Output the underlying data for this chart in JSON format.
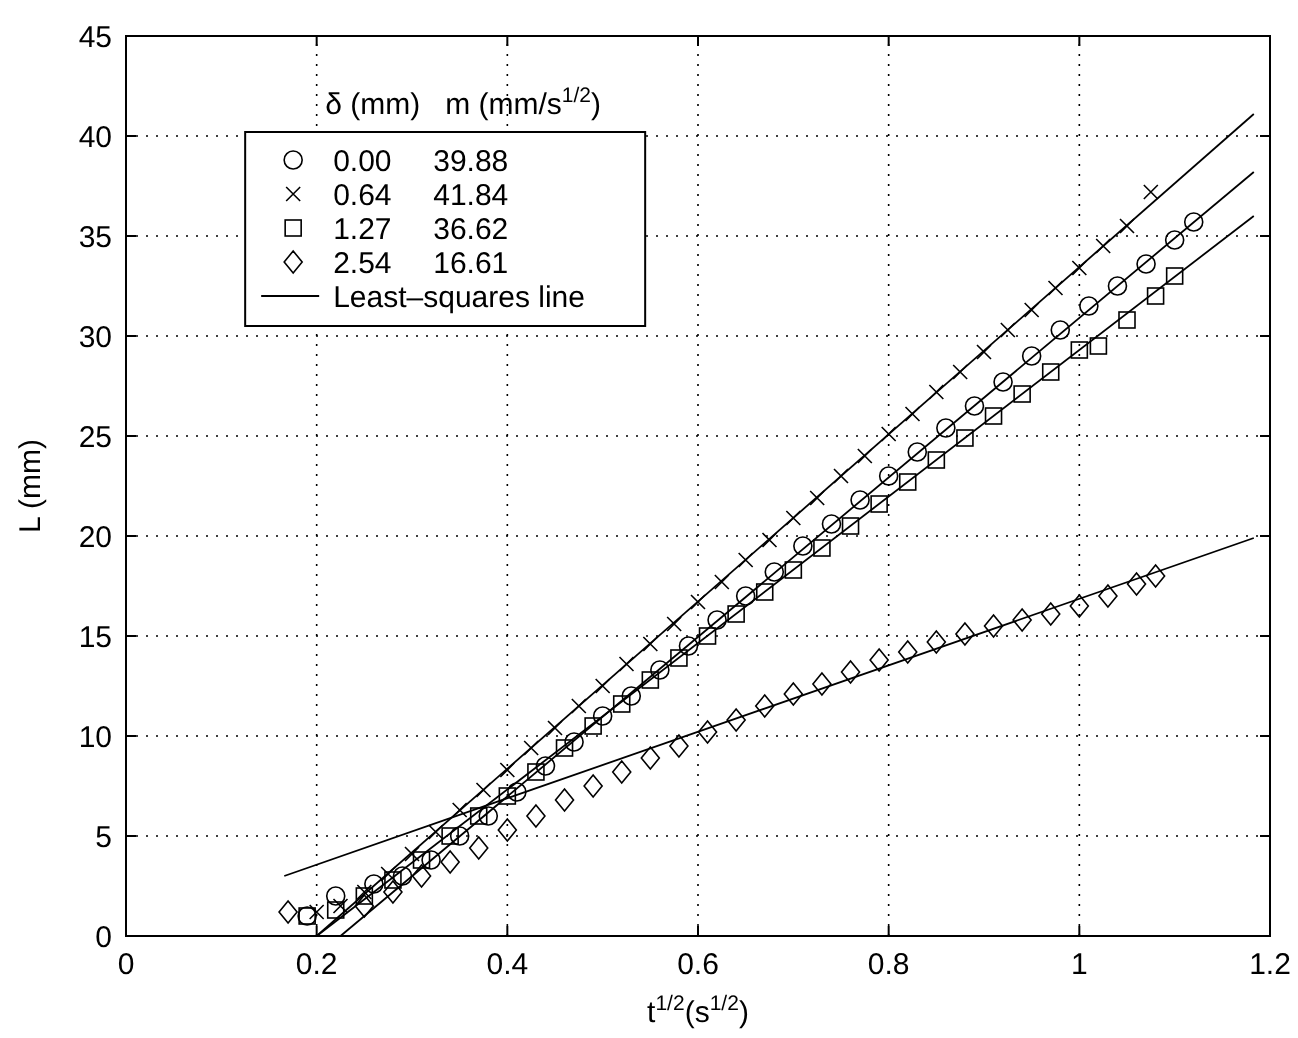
{
  "chart_data": {
    "type": "scatter",
    "xlabel": "t$^{1/2}$(s$^{1/2}$)",
    "ylabel": "L (mm)",
    "legend_title": "δ (mm)   m (mm/s$^{1/2}$)",
    "xlim": [
      0,
      1.2
    ],
    "xticks": [
      0,
      0.2,
      0.4,
      0.6,
      0.8,
      1,
      1.2
    ],
    "ylim": [
      0,
      45
    ],
    "yticks": [
      0,
      5,
      10,
      15,
      20,
      25,
      30,
      35,
      40,
      45
    ],
    "grid": true,
    "legend": "top left",
    "series": [
      {
        "name": "0.00     39.88",
        "color": "#000000",
        "marker": "circle",
        "x": [
          0.19,
          0.22,
          0.26,
          0.29,
          0.32,
          0.35,
          0.38,
          0.41,
          0.44,
          0.47,
          0.5,
          0.53,
          0.56,
          0.59,
          0.62,
          0.65,
          0.68,
          0.71,
          0.74,
          0.77,
          0.8,
          0.83,
          0.86,
          0.89,
          0.92,
          0.95,
          0.98,
          1.01,
          1.04,
          1.07,
          1.1,
          1.12
        ],
        "values": [
          1.0,
          2.0,
          2.6,
          3.0,
          3.8,
          5.0,
          6.0,
          7.2,
          8.5,
          9.7,
          11.0,
          12.0,
          13.3,
          14.5,
          15.8,
          17.0,
          18.2,
          19.5,
          20.6,
          21.8,
          23.0,
          24.2,
          25.4,
          26.5,
          27.7,
          29.0,
          30.3,
          31.5,
          32.5,
          33.6,
          34.8,
          35.7
        ]
      },
      {
        "name": "0.64     41.84",
        "color": "#000000",
        "marker": "cross",
        "x": [
          0.2,
          0.225,
          0.25,
          0.275,
          0.3,
          0.325,
          0.35,
          0.375,
          0.4,
          0.425,
          0.45,
          0.475,
          0.5,
          0.525,
          0.55,
          0.575,
          0.6,
          0.625,
          0.65,
          0.675,
          0.7,
          0.725,
          0.75,
          0.775,
          0.8,
          0.825,
          0.85,
          0.875,
          0.9,
          0.925,
          0.95,
          0.975,
          1.0,
          1.025,
          1.05,
          1.075
        ],
        "values": [
          1.2,
          1.5,
          2.2,
          3.1,
          4.1,
          5.2,
          6.3,
          7.3,
          8.3,
          9.4,
          10.4,
          11.5,
          12.5,
          13.6,
          14.6,
          15.6,
          16.7,
          17.7,
          18.8,
          19.8,
          20.9,
          21.9,
          23.0,
          24.0,
          25.1,
          26.1,
          27.2,
          28.2,
          29.2,
          30.3,
          31.3,
          32.4,
          33.4,
          34.5,
          35.5,
          37.2
        ]
      },
      {
        "name": "1.27     36.62",
        "color": "#000000",
        "marker": "square",
        "x": [
          0.19,
          0.22,
          0.25,
          0.28,
          0.31,
          0.34,
          0.37,
          0.4,
          0.43,
          0.46,
          0.49,
          0.52,
          0.55,
          0.58,
          0.61,
          0.64,
          0.67,
          0.7,
          0.73,
          0.76,
          0.79,
          0.82,
          0.85,
          0.88,
          0.91,
          0.94,
          0.97,
          1.0,
          1.02,
          1.05,
          1.08,
          1.1
        ],
        "values": [
          1.0,
          1.3,
          2.0,
          2.8,
          3.8,
          5.0,
          6.0,
          7.0,
          8.2,
          9.4,
          10.5,
          11.6,
          12.8,
          13.9,
          15.0,
          16.1,
          17.2,
          18.3,
          19.4,
          20.5,
          21.6,
          22.7,
          23.8,
          24.9,
          26.0,
          27.1,
          28.2,
          29.3,
          29.5,
          30.8,
          32.0,
          33.0
        ]
      },
      {
        "name": "2.54     16.61",
        "color": "#000000",
        "marker": "diamond",
        "x": [
          0.17,
          0.25,
          0.28,
          0.31,
          0.34,
          0.37,
          0.4,
          0.43,
          0.46,
          0.49,
          0.52,
          0.55,
          0.58,
          0.61,
          0.64,
          0.67,
          0.7,
          0.73,
          0.76,
          0.79,
          0.82,
          0.85,
          0.88,
          0.91,
          0.94,
          0.97,
          1.0,
          1.03,
          1.06,
          1.08
        ],
        "values": [
          1.2,
          1.5,
          2.2,
          3.0,
          3.7,
          4.4,
          5.3,
          6.0,
          6.8,
          7.5,
          8.2,
          8.9,
          9.5,
          10.2,
          10.8,
          11.5,
          12.1,
          12.6,
          13.2,
          13.8,
          14.2,
          14.7,
          15.1,
          15.5,
          15.8,
          16.1,
          16.5,
          17.0,
          17.6,
          18.0
        ]
      },
      {
        "name": "Least–squares line",
        "type": "line",
        "color": "#000000",
        "line_style": "solid",
        "x": [
          0.2,
          1.183
        ],
        "values": [
          0,
          41.1
        ]
      },
      {
        "type": "line",
        "color": "#000000",
        "line_style": "solid",
        "x": [
          0.225,
          1.183
        ],
        "values": [
          0,
          38.2
        ]
      },
      {
        "type": "line",
        "color": "#000000",
        "line_style": "solid",
        "x": [
          0.2,
          1.183
        ],
        "values": [
          0,
          36.0
        ]
      },
      {
        "type": "line",
        "color": "#000000",
        "line_style": "solid",
        "x": [
          0.166,
          1.183
        ],
        "values": [
          3.0,
          19.9
        ]
      }
    ]
  }
}
